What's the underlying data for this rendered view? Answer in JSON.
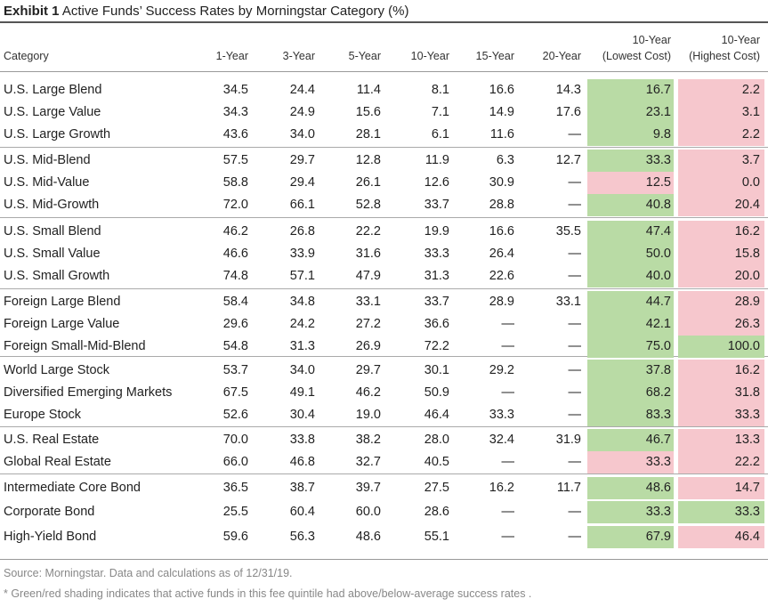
{
  "exhibit_label": "Exhibit 1",
  "title": "Active Funds’ Success Rates by Morningstar Category (%)",
  "headers": {
    "category": "Category",
    "y1": "1-Year",
    "y3": "3-Year",
    "y5": "5-Year",
    "y10": "10-Year",
    "y15": "15-Year",
    "y20": "20-Year",
    "low_top": "10-Year",
    "low_bottom": "(Lowest Cost)",
    "high_top": "10-Year",
    "high_bottom": "(Highest Cost)"
  },
  "shading_colors": {
    "green": "#b9dba5",
    "red": "#f6c7cd"
  },
  "chart_data": {
    "type": "table",
    "columns": [
      "Category",
      "1-Year",
      "3-Year",
      "5-Year",
      "10-Year",
      "15-Year",
      "20-Year",
      "10-Year (Lowest Cost)",
      "10-Year (Highest Cost)"
    ],
    "rows": [
      {
        "category": "U.S. Large Blend",
        "values": [
          "34.5",
          "24.4",
          "11.4",
          "8.1",
          "16.6",
          "14.3",
          "16.7",
          "2.2"
        ],
        "low_shade": "green",
        "high_shade": "red"
      },
      {
        "category": "U.S. Large Value",
        "values": [
          "34.3",
          "24.9",
          "15.6",
          "7.1",
          "14.9",
          "17.6",
          "23.1",
          "3.1"
        ],
        "low_shade": "green",
        "high_shade": "red"
      },
      {
        "category": "U.S. Large Growth",
        "values": [
          "43.6",
          "34.0",
          "28.1",
          "6.1",
          "11.6",
          "—",
          "9.8",
          "2.2"
        ],
        "low_shade": "green",
        "high_shade": "red"
      },
      {
        "category": "U.S. Mid-Blend",
        "values": [
          "57.5",
          "29.7",
          "12.8",
          "11.9",
          "6.3",
          "12.7",
          "33.3",
          "3.7"
        ],
        "low_shade": "green",
        "high_shade": "red"
      },
      {
        "category": "U.S. Mid-Value",
        "values": [
          "58.8",
          "29.4",
          "26.1",
          "12.6",
          "30.9",
          "—",
          "12.5",
          "0.0"
        ],
        "low_shade": "red",
        "high_shade": "red"
      },
      {
        "category": "U.S. Mid-Growth",
        "values": [
          "72.0",
          "66.1",
          "52.8",
          "33.7",
          "28.8",
          "—",
          "40.8",
          "20.4"
        ],
        "low_shade": "green",
        "high_shade": "red"
      },
      {
        "category": "U.S. Small Blend",
        "values": [
          "46.2",
          "26.8",
          "22.2",
          "19.9",
          "16.6",
          "35.5",
          "47.4",
          "16.2"
        ],
        "low_shade": "green",
        "high_shade": "red"
      },
      {
        "category": "U.S. Small Value",
        "values": [
          "46.6",
          "33.9",
          "31.6",
          "33.3",
          "26.4",
          "—",
          "50.0",
          "15.8"
        ],
        "low_shade": "green",
        "high_shade": "red"
      },
      {
        "category": "U.S. Small Growth",
        "values": [
          "74.8",
          "57.1",
          "47.9",
          "31.3",
          "22.6",
          "—",
          "40.0",
          "20.0"
        ],
        "low_shade": "green",
        "high_shade": "red"
      },
      {
        "category": "Foreign Large Blend",
        "values": [
          "58.4",
          "34.8",
          "33.1",
          "33.7",
          "28.9",
          "33.1",
          "44.7",
          "28.9"
        ],
        "low_shade": "green",
        "high_shade": "red"
      },
      {
        "category": "Foreign Large Value",
        "values": [
          "29.6",
          "24.2",
          "27.2",
          "36.6",
          "—",
          "—",
          "42.1",
          "26.3"
        ],
        "low_shade": "green",
        "high_shade": "red"
      },
      {
        "category": "Foreign Small-Mid-Blend",
        "values": [
          "54.8",
          "31.3",
          "26.9",
          "72.2",
          "—",
          "—",
          "75.0",
          "100.0"
        ],
        "low_shade": "green",
        "high_shade": "green"
      },
      {
        "category": "World Large Stock",
        "values": [
          "53.7",
          "34.0",
          "29.7",
          "30.1",
          "29.2",
          "—",
          "37.8",
          "16.2"
        ],
        "low_shade": "green",
        "high_shade": "red"
      },
      {
        "category": "Diversified Emerging Markets",
        "values": [
          "67.5",
          "49.1",
          "46.2",
          "50.9",
          "—",
          "—",
          "68.2",
          "31.8"
        ],
        "low_shade": "green",
        "high_shade": "red"
      },
      {
        "category": "Europe Stock",
        "values": [
          "52.6",
          "30.4",
          "19.0",
          "46.4",
          "33.3",
          "—",
          "83.3",
          "33.3"
        ],
        "low_shade": "green",
        "high_shade": "red"
      },
      {
        "category": "U.S. Real Estate",
        "values": [
          "70.0",
          "33.8",
          "38.2",
          "28.0",
          "32.4",
          "31.9",
          "46.7",
          "13.3"
        ],
        "low_shade": "green",
        "high_shade": "red"
      },
      {
        "category": "Global Real Estate",
        "values": [
          "66.0",
          "46.8",
          "32.7",
          "40.5",
          "—",
          "—",
          "33.3",
          "22.2"
        ],
        "low_shade": "red",
        "high_shade": "red"
      },
      {
        "category": "Intermediate Core Bond",
        "values": [
          "36.5",
          "38.7",
          "39.7",
          "27.5",
          "16.2",
          "11.7",
          "48.6",
          "14.7"
        ],
        "low_shade": "green",
        "high_shade": "red"
      },
      {
        "category": "Corporate Bond",
        "values": [
          "25.5",
          "60.4",
          "60.0",
          "28.6",
          "—",
          "—",
          "33.3",
          "33.3"
        ],
        "low_shade": "green",
        "high_shade": "green"
      },
      {
        "category": "High-Yield Bond",
        "values": [
          "59.6",
          "56.3",
          "48.6",
          "55.1",
          "—",
          "—",
          "67.9",
          "46.4"
        ],
        "low_shade": "green",
        "high_shade": "red"
      }
    ],
    "group_sizes": [
      3,
      3,
      3,
      3,
      3,
      2,
      3
    ]
  },
  "footer": {
    "source": "Source: Morningstar. Data and calculations as of 12/31/19.",
    "note": "* Green/red shading indicates that active funds in this fee quintile had above/below-average success rates ."
  }
}
